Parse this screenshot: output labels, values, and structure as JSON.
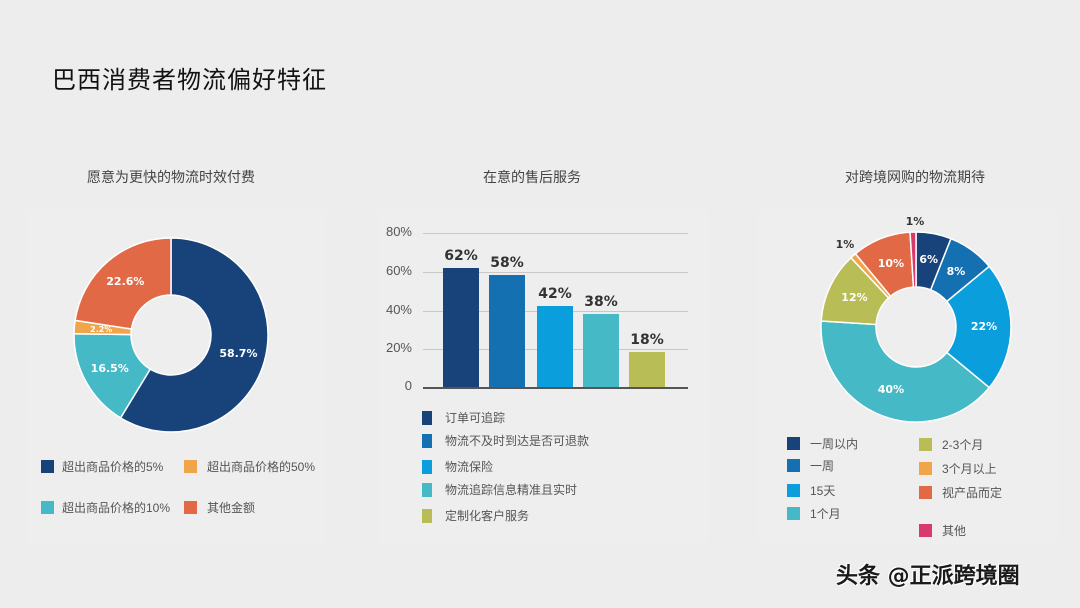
{
  "page": {
    "title": "巴西消费者物流偏好特征",
    "watermark": "头条 @正派跨境圈"
  },
  "colors": {
    "navy": "#17427a",
    "mid_blue": "#1470b0",
    "bright_blue": "#0a9edc",
    "teal": "#45b9c6",
    "olive": "#b8bd55",
    "orange": "#f0a54a",
    "red_orange": "#e26945",
    "pink": "#d93a6e",
    "background": "#ededed"
  },
  "chart_data": [
    {
      "type": "pie",
      "variant": "donut",
      "title": "愿意为更快的物流时效付费",
      "categories": [
        "超出商品价格的5%",
        "超出商品价格的10%",
        "超出商品价格的50%",
        "其他金额"
      ],
      "values": [
        58.7,
        16.5,
        2.2,
        22.6
      ],
      "labels": [
        "58.7%",
        "16.5%",
        "2.2%",
        "22.6%"
      ],
      "colors": [
        "#17427a",
        "#45b9c6",
        "#f0a54a",
        "#e26945"
      ],
      "legend": [
        {
          "label": "超出商品价格的5%",
          "color": "#17427a"
        },
        {
          "label": "超出商品价格的50%",
          "color": "#f0a54a"
        },
        {
          "label": "超出商品价格的10%",
          "color": "#45b9c6"
        },
        {
          "label": "其他金额",
          "color": "#e26945"
        }
      ],
      "legend_position": "bottom",
      "start_angle": "12 o'clock, clockwise"
    },
    {
      "type": "bar",
      "title": "在意的售后服务",
      "categories": [
        "订单可追踪",
        "物流不及时到达是否可退款",
        "物流保险",
        "物流追踪信息精准且实时",
        "定制化客户服务"
      ],
      "values": [
        62,
        58,
        42,
        38,
        18
      ],
      "labels": [
        "62%",
        "58%",
        "42%",
        "38%",
        "18%"
      ],
      "colors": [
        "#17427a",
        "#1470b0",
        "#0a9edc",
        "#45b9c6",
        "#b8bd55"
      ],
      "xlabel": "",
      "ylabel": "",
      "ylim": [
        0,
        80
      ],
      "yticks": [
        "0",
        "20%",
        "40%",
        "60%",
        "80%"
      ],
      "grid": true,
      "legend": [
        {
          "label": "订单可追踪",
          "color": "#17427a"
        },
        {
          "label": "物流不及时到达是否可退款",
          "color": "#1470b0"
        },
        {
          "label": "物流保险",
          "color": "#0a9edc"
        },
        {
          "label": "物流追踪信息精准且实时",
          "color": "#45b9c6"
        },
        {
          "label": "定制化客户服务",
          "color": "#b8bd55"
        }
      ],
      "legend_position": "bottom"
    },
    {
      "type": "pie",
      "variant": "donut",
      "title": "对跨境网购的物流期待",
      "categories": [
        "一周以内",
        "一周",
        "15天",
        "1个月",
        "2-3个月",
        "3个月以上",
        "视产品而定",
        "其他"
      ],
      "values": [
        6,
        8,
        22,
        40,
        12,
        1,
        10,
        1
      ],
      "labels": [
        "6%",
        "8%",
        "22%",
        "40%",
        "12%",
        "1%",
        "10%",
        "1%"
      ],
      "colors": [
        "#17427a",
        "#1470b0",
        "#0a9edc",
        "#45b9c6",
        "#b8bd55",
        "#f0a54a",
        "#e26945",
        "#d93a6e"
      ],
      "legend": [
        {
          "label": "一周以内",
          "color": "#17427a"
        },
        {
          "label": "一周",
          "color": "#1470b0"
        },
        {
          "label": "15天",
          "color": "#0a9edc"
        },
        {
          "label": "1个月",
          "color": "#45b9c6"
        },
        {
          "label": "2-3个月",
          "color": "#b8bd55"
        },
        {
          "label": "3个月以上",
          "color": "#f0a54a"
        },
        {
          "label": "视产品而定",
          "color": "#e26945"
        },
        {
          "label": "其他",
          "color": "#d93a6e"
        }
      ],
      "legend_position": "bottom",
      "start_angle": "12 o'clock, clockwise"
    }
  ]
}
